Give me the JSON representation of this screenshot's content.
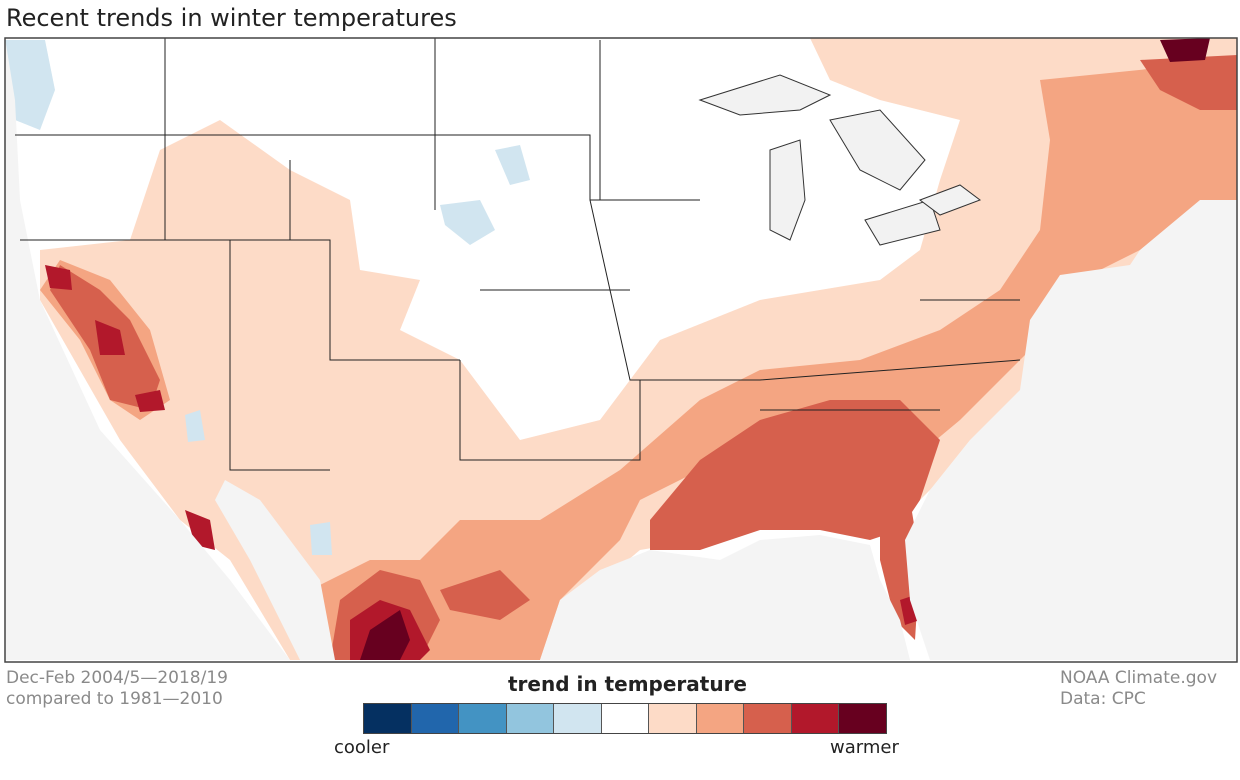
{
  "title": "Recent trends in winter temperatures",
  "period": {
    "line1": "Dec-Feb 2004/5—2018/19",
    "line2": "compared to 1981—2010"
  },
  "credit": {
    "line1": "NOAA Climate.gov",
    "line2": "Data: CPC"
  },
  "legend": {
    "title": "trend in temperature",
    "low": "cooler",
    "high": "warmer",
    "colors": [
      "#053061",
      "#2166ac",
      "#4393c3",
      "#92c5de",
      "#d1e5f0",
      "#ffffff",
      "#fddbc7",
      "#f4a582",
      "#d6604d",
      "#b2182b",
      "#67001f"
    ]
  }
}
